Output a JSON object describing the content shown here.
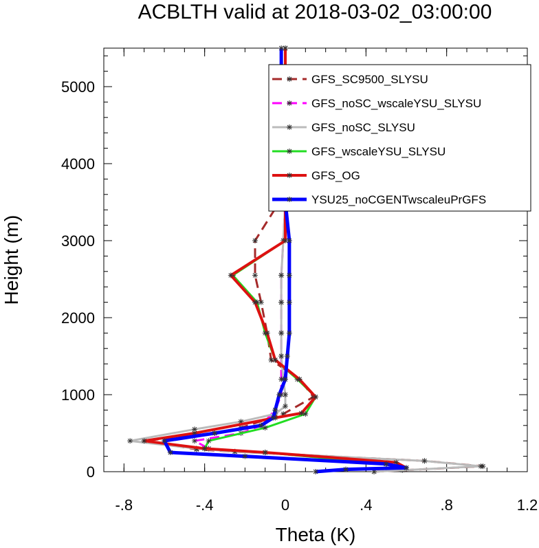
{
  "chart_data": {
    "type": "line",
    "title": "ACBLTH valid at 2018-03-02_03:00:00",
    "xlabel": "Theta (K)",
    "ylabel": "Height (m)",
    "xlim": [
      -0.9,
      1.2
    ],
    "ylim": [
      0,
      5500
    ],
    "x_ticks": [
      -0.8,
      -0.4,
      0,
      0.4,
      0.8,
      1.2
    ],
    "x_tick_labels": [
      "-.8",
      "-.4",
      "0",
      ".4",
      ".8",
      "1.2"
    ],
    "y_ticks": [
      0,
      1000,
      2000,
      3000,
      4000,
      5000
    ],
    "y_tick_labels": [
      "0",
      "1000",
      "2000",
      "3000",
      "4000",
      "5000"
    ],
    "legend_position": "top-right",
    "series": [
      {
        "name": "GFS_SC9500_SLYSU",
        "color": "#a52a2a",
        "dash": "dash",
        "marker": "asterisk",
        "points": [
          [
            0.44,
            0
          ],
          [
            0.98,
            70
          ],
          [
            0.69,
            140
          ],
          [
            -0.25,
            260
          ],
          [
            -0.44,
            290
          ],
          [
            -0.7,
            400
          ],
          [
            -0.35,
            500
          ],
          [
            -0.22,
            570
          ],
          [
            -0.01,
            750
          ],
          [
            0.14,
            970
          ],
          [
            0.07,
            1200
          ],
          [
            -0.07,
            1450
          ],
          [
            -0.09,
            1800
          ],
          [
            -0.12,
            2200
          ],
          [
            -0.15,
            2550
          ],
          [
            -0.15,
            3000
          ],
          [
            -0.03,
            3500
          ],
          [
            0,
            4000
          ],
          [
            -0.01,
            4650
          ],
          [
            0,
            5200
          ],
          [
            0,
            5500
          ]
        ]
      },
      {
        "name": "GFS_noSC_wscaleYSU_SLYSU",
        "color": "#ff00ff",
        "dash": "dash",
        "marker": "asterisk",
        "points": [
          [
            0.58,
            20
          ],
          [
            0.5,
            100
          ],
          [
            -0.1,
            250
          ],
          [
            -0.38,
            300
          ],
          [
            -0.45,
            400
          ],
          [
            -0.22,
            500
          ],
          [
            -0.12,
            600
          ],
          [
            -0.05,
            800
          ],
          [
            -0.02,
            1000
          ],
          [
            -0.02,
            1200
          ],
          [
            -0.02,
            1500
          ],
          [
            -0.02,
            1800
          ],
          [
            -0.02,
            2200
          ],
          [
            -0.02,
            2550
          ],
          [
            -0.01,
            3000
          ],
          [
            0,
            3500
          ],
          [
            0,
            4000
          ],
          [
            0,
            4650
          ],
          [
            0,
            5200
          ],
          [
            0,
            5500
          ]
        ]
      },
      {
        "name": "GFS_noSC_SLYSU",
        "color": "#bbbbbb",
        "dash": "solid",
        "marker": "asterisk",
        "points": [
          [
            0.44,
            0
          ],
          [
            0.97,
            70
          ],
          [
            0.69,
            140
          ],
          [
            -0.25,
            260
          ],
          [
            -0.44,
            300
          ],
          [
            -0.77,
            400
          ],
          [
            -0.45,
            550
          ],
          [
            -0.22,
            650
          ],
          [
            -0.05,
            750
          ],
          [
            0,
            850
          ],
          [
            0,
            1000
          ],
          [
            -0.01,
            1200
          ],
          [
            -0.02,
            1500
          ],
          [
            -0.02,
            1800
          ],
          [
            -0.02,
            2200
          ],
          [
            -0.02,
            2550
          ],
          [
            -0.01,
            3000
          ],
          [
            0,
            3500
          ],
          [
            0,
            4000
          ],
          [
            0,
            4650
          ],
          [
            0,
            5200
          ],
          [
            0,
            5500
          ]
        ]
      },
      {
        "name": "GFS_wscaleYSU_SLYSU",
        "color": "#22dd22",
        "dash": "solid",
        "marker": "asterisk",
        "points": [
          [
            0.6,
            50
          ],
          [
            0.5,
            100
          ],
          [
            -0.1,
            250
          ],
          [
            -0.4,
            300
          ],
          [
            -0.38,
            400
          ],
          [
            -0.1,
            570
          ],
          [
            0.1,
            750
          ],
          [
            0.15,
            970
          ],
          [
            0.06,
            1200
          ],
          [
            -0.05,
            1450
          ],
          [
            -0.1,
            1800
          ],
          [
            -0.14,
            2200
          ],
          [
            -0.26,
            2550
          ],
          [
            0,
            3000
          ],
          [
            0,
            3500
          ],
          [
            0,
            4000
          ],
          [
            0,
            4650
          ],
          [
            0,
            5200
          ],
          [
            0,
            5500
          ]
        ]
      },
      {
        "name": "GFS_OG",
        "color": "#dd1111",
        "dash": "solid",
        "marker": "asterisk",
        "points": [
          [
            0.6,
            50
          ],
          [
            0.55,
            120
          ],
          [
            -0.1,
            250
          ],
          [
            -0.4,
            300
          ],
          [
            -0.7,
            400
          ],
          [
            -0.45,
            500
          ],
          [
            -0.05,
            700
          ],
          [
            0.08,
            760
          ],
          [
            0.15,
            970
          ],
          [
            0.07,
            1200
          ],
          [
            -0.05,
            1450
          ],
          [
            -0.09,
            1800
          ],
          [
            -0.15,
            2200
          ],
          [
            -0.27,
            2550
          ],
          [
            0,
            3000
          ],
          [
            0,
            3500
          ],
          [
            0,
            4000
          ],
          [
            0,
            4650
          ],
          [
            0,
            5200
          ],
          [
            0,
            5500
          ]
        ]
      },
      {
        "name": "YSU25_noCGENTwscaleuPrGFS",
        "color": "#0000ff",
        "dash": "solid",
        "marker": "asterisk",
        "points": [
          [
            0.15,
            0
          ],
          [
            0.3,
            30
          ],
          [
            0.6,
            50
          ],
          [
            0.5,
            100
          ],
          [
            -0.2,
            200
          ],
          [
            -0.57,
            250
          ],
          [
            -0.6,
            400
          ],
          [
            -0.35,
            500
          ],
          [
            -0.12,
            600
          ],
          [
            -0.06,
            700
          ],
          [
            -0.05,
            800
          ],
          [
            -0.03,
            1000
          ],
          [
            0,
            1200
          ],
          [
            0.01,
            1500
          ],
          [
            0.02,
            1800
          ],
          [
            0.02,
            2200
          ],
          [
            0.02,
            2550
          ],
          [
            0.02,
            3000
          ],
          [
            0,
            3500
          ],
          [
            -0.03,
            4000
          ],
          [
            -0.02,
            4650
          ],
          [
            -0.02,
            5200
          ],
          [
            -0.02,
            5500
          ]
        ]
      }
    ]
  }
}
